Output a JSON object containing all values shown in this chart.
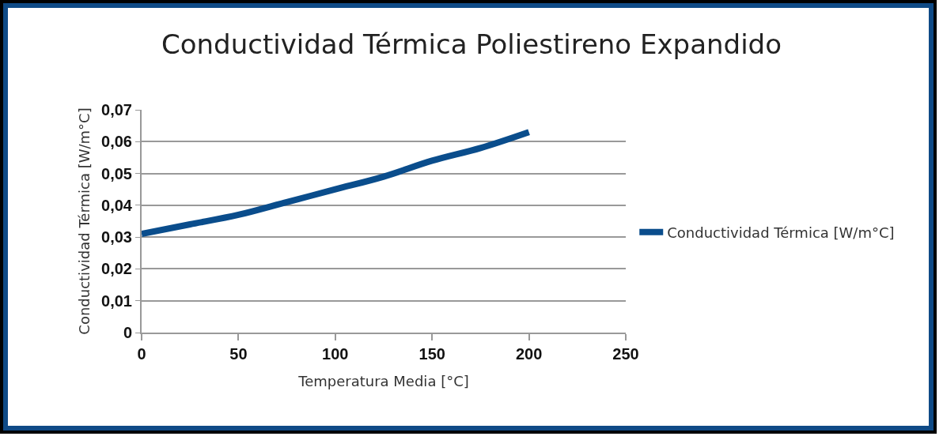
{
  "chart_data": {
    "type": "line",
    "title": "Conductividad Térmica Poliestireno Expandido",
    "xlabel": "Temperatura Media [°C]",
    "ylabel": "Conductividad Térmica [W/m°C]",
    "x": [
      0,
      25,
      50,
      75,
      100,
      125,
      150,
      175,
      200
    ],
    "series": [
      {
        "name": "Conductividad Térmica [W/m°C]",
        "color": "#0a4d8c",
        "values": [
          0.031,
          0.034,
          0.037,
          0.041,
          0.045,
          0.049,
          0.054,
          0.058,
          0.063
        ]
      }
    ],
    "xlim": [
      0,
      250
    ],
    "xticks": [
      0,
      50,
      100,
      150,
      200,
      250
    ],
    "ylim": [
      0,
      0.07
    ],
    "yticks": [
      0,
      {
        "value": 0.01,
        "label": "0,01"
      },
      {
        "value": 0.02,
        "label": "0,02"
      },
      {
        "value": 0.03,
        "label": "0,03"
      },
      {
        "value": 0.04,
        "label": "0,04"
      },
      {
        "value": 0.05,
        "label": "0,05"
      },
      {
        "value": 0.06,
        "label": "0,06"
      },
      {
        "value": 0.07,
        "label": "0,07"
      }
    ],
    "grid": "y",
    "legend": "right",
    "marker": "none",
    "line_style": "solid"
  }
}
